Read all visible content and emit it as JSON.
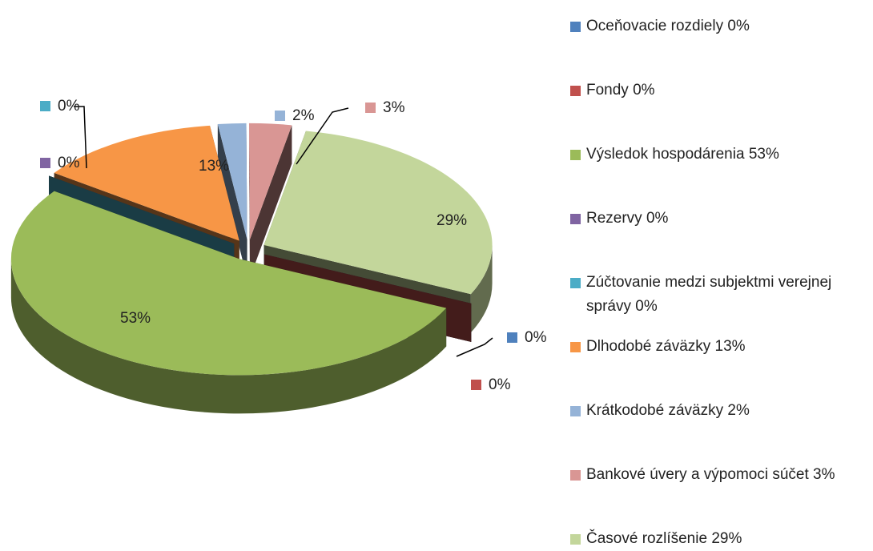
{
  "chart_data": {
    "type": "pie",
    "categories": [
      "Oceňovacie rozdiely",
      "Fondy",
      "Výsledok hospodárenia",
      "Rezervy",
      "Zúčtovanie medzi subjektmi verejnej správy",
      "Dlhodobé záväzky",
      "Krátkodobé záväzky",
      "Bankové úvery a výpomoci súčet",
      "Časové rozlíšenie"
    ],
    "values": [
      0,
      0,
      53,
      0,
      0,
      13,
      2,
      3,
      29
    ],
    "value_labels": [
      "0%",
      "0%",
      "53%",
      "0%",
      "0%",
      "13%",
      "2%",
      "3%",
      "29%"
    ],
    "colors": [
      "#4f81bd",
      "#c0504d",
      "#9bbb59",
      "#8064a2",
      "#4bacc6",
      "#f79646",
      "#95b3d7",
      "#d99694",
      "#c3d69b"
    ],
    "legend": "right"
  }
}
